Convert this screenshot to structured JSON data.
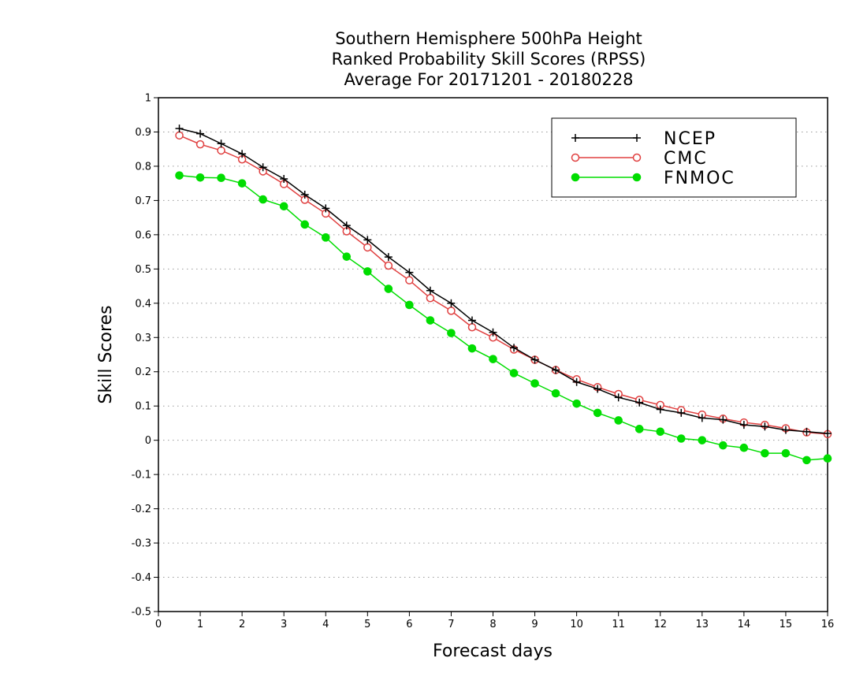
{
  "chart_data": {
    "type": "line",
    "title": [
      "Southern Hemisphere 500hPa Height",
      "Ranked Probability Skill Scores (RPSS)",
      "Average For 20171201 - 20180228"
    ],
    "xlabel": "Forecast days",
    "ylabel": "Skill Scores",
    "xlim": [
      0,
      16
    ],
    "ylim": [
      -0.5,
      1
    ],
    "x_ticks": [
      "0",
      "1",
      "2",
      "3",
      "4",
      "5",
      "6",
      "7",
      "8",
      "9",
      "10",
      "11",
      "12",
      "13",
      "14",
      "15",
      "16"
    ],
    "y_ticks": [
      "1",
      "0.9",
      "0.8",
      "0.7",
      "0.6",
      "0.5",
      "0.4",
      "0.3",
      "0.2",
      "0.1",
      "0",
      "-0.1",
      "-0.2",
      "-0.3",
      "-0.4",
      "-0.5"
    ],
    "grid": "horizontal dotted",
    "legend_position": "top-right",
    "x": [
      0.5,
      1.0,
      1.5,
      2.0,
      2.5,
      3.0,
      3.5,
      4.0,
      4.5,
      5.0,
      5.5,
      6.0,
      6.5,
      7.0,
      7.5,
      8.0,
      8.5,
      9.0,
      9.5,
      10.0,
      10.5,
      11.0,
      11.5,
      12.0,
      12.5,
      13.0,
      13.5,
      14.0,
      14.5,
      15.0,
      15.5,
      16.0
    ],
    "series": [
      {
        "name": "NCEP",
        "color": "#000000",
        "marker": "plus",
        "values": [
          0.91,
          0.895,
          0.866,
          0.836,
          0.797,
          0.763,
          0.717,
          0.677,
          0.627,
          0.585,
          0.535,
          0.49,
          0.437,
          0.4,
          0.35,
          0.315,
          0.27,
          0.235,
          0.205,
          0.17,
          0.15,
          0.125,
          0.11,
          0.09,
          0.08,
          0.065,
          0.06,
          0.045,
          0.04,
          0.03,
          0.025,
          0.02
        ]
      },
      {
        "name": "CMC",
        "color": "#e04040",
        "marker": "open-circle",
        "values": [
          0.89,
          0.864,
          0.846,
          0.82,
          0.785,
          0.748,
          0.702,
          0.662,
          0.61,
          0.563,
          0.51,
          0.467,
          0.415,
          0.378,
          0.33,
          0.3,
          0.265,
          0.235,
          0.205,
          0.178,
          0.155,
          0.135,
          0.118,
          0.103,
          0.088,
          0.075,
          0.063,
          0.052,
          0.045,
          0.035,
          0.023,
          0.018
        ]
      },
      {
        "name": "FNMOC",
        "color": "#00dd00",
        "marker": "filled-circle",
        "values": [
          0.773,
          0.767,
          0.766,
          0.75,
          0.703,
          0.683,
          0.63,
          0.592,
          0.536,
          0.493,
          0.442,
          0.395,
          0.35,
          0.313,
          0.268,
          0.237,
          0.196,
          0.166,
          0.137,
          0.107,
          0.08,
          0.058,
          0.033,
          0.025,
          0.005,
          0.0,
          -0.015,
          -0.022,
          -0.038,
          -0.038,
          -0.058,
          -0.053
        ]
      }
    ]
  }
}
